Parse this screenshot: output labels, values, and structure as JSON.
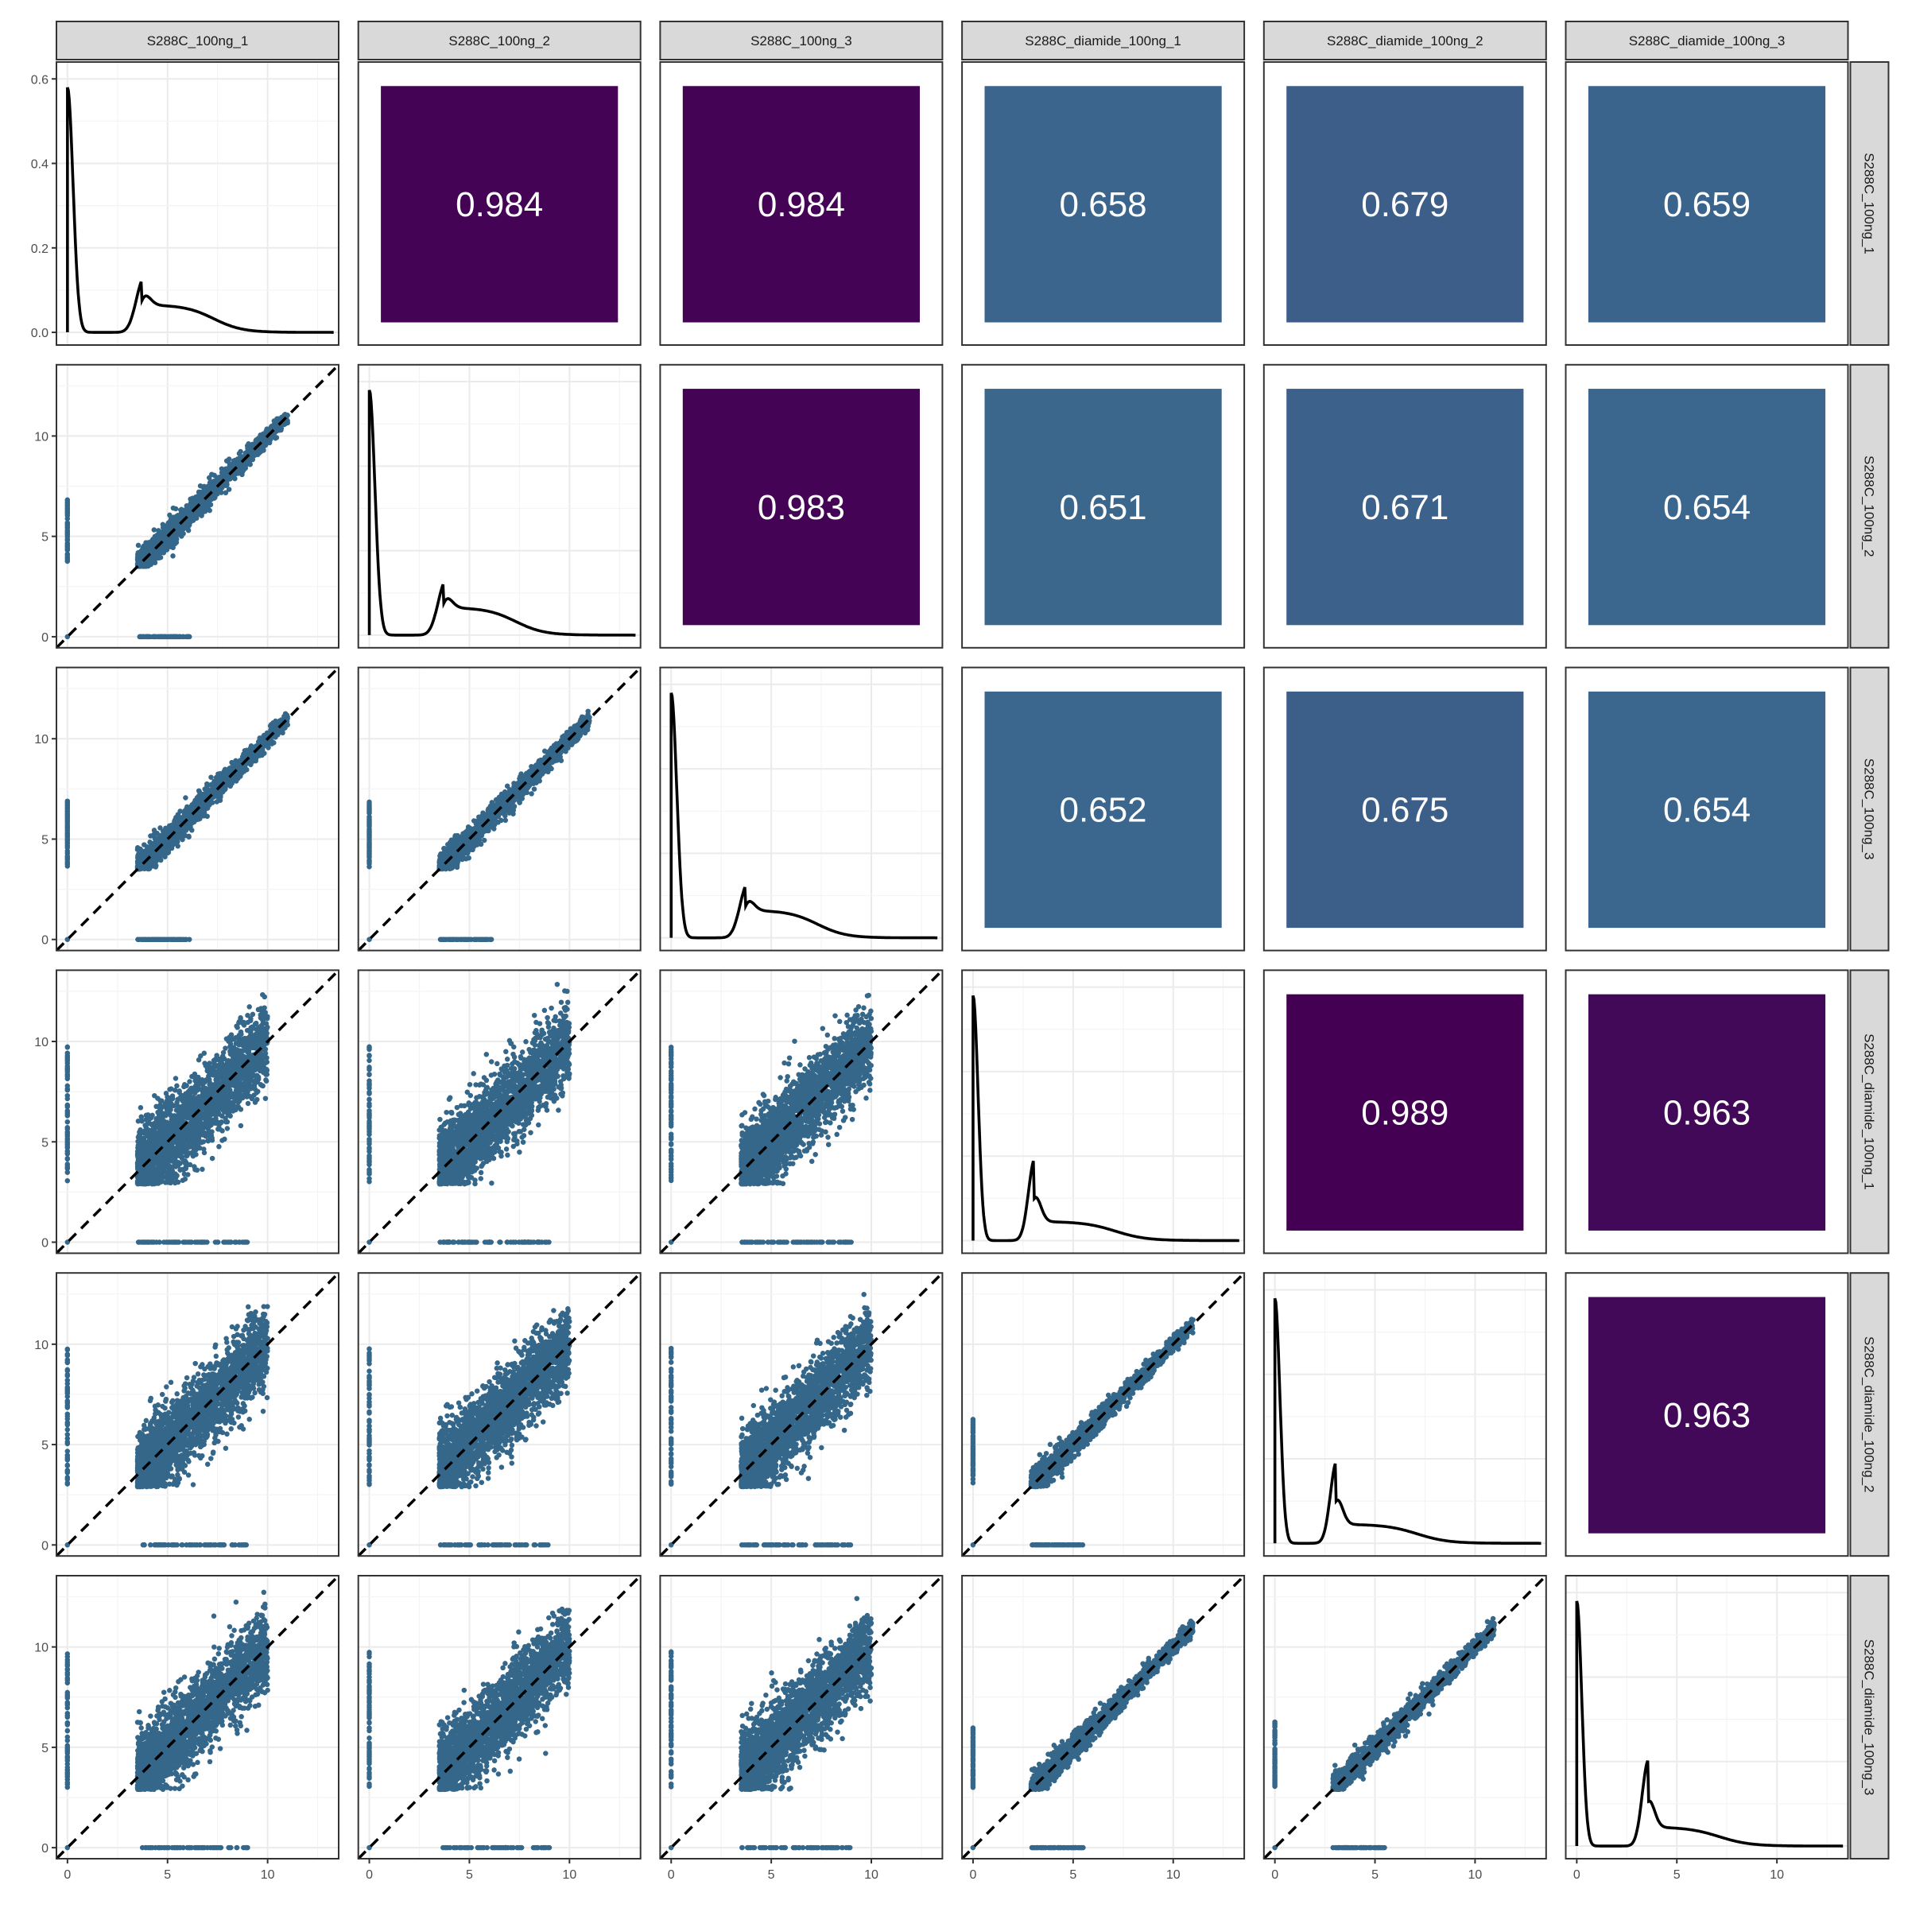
{
  "chart_data": {
    "type": "scatter-matrix",
    "variables": [
      "S288C_100ng_1",
      "S288C_100ng_2",
      "S288C_100ng_3",
      "S288C_diamide_100ng_1",
      "S288C_diamide_100ng_2",
      "S288C_diamide_100ng_3"
    ],
    "upper_panels": {
      "type": "correlation",
      "cells": [
        {
          "row": 0,
          "col": 1,
          "value": "0.984"
        },
        {
          "row": 0,
          "col": 2,
          "value": "0.984"
        },
        {
          "row": 0,
          "col": 3,
          "value": "0.658"
        },
        {
          "row": 0,
          "col": 4,
          "value": "0.679"
        },
        {
          "row": 0,
          "col": 5,
          "value": "0.659"
        },
        {
          "row": 1,
          "col": 2,
          "value": "0.983"
        },
        {
          "row": 1,
          "col": 3,
          "value": "0.651"
        },
        {
          "row": 1,
          "col": 4,
          "value": "0.671"
        },
        {
          "row": 1,
          "col": 5,
          "value": "0.654"
        },
        {
          "row": 2,
          "col": 3,
          "value": "0.652"
        },
        {
          "row": 2,
          "col": 4,
          "value": "0.675"
        },
        {
          "row": 2,
          "col": 5,
          "value": "0.654"
        },
        {
          "row": 3,
          "col": 4,
          "value": "0.989"
        },
        {
          "row": 3,
          "col": 5,
          "value": "0.963"
        },
        {
          "row": 4,
          "col": 5,
          "value": "0.963"
        }
      ],
      "color_high": "#440154",
      "color_low": "#3b6a8f"
    },
    "diagonal_panels": {
      "type": "density",
      "line_color": "#000000",
      "ylim": [
        0,
        0.6
      ],
      "y_ticks": [
        "0.0",
        "0.2",
        "0.4",
        "0.6"
      ]
    },
    "lower_panels": {
      "type": "scatter",
      "point_color": "#35678a",
      "reference_line": "y = x dashed",
      "xlim": [
        0,
        13
      ],
      "ylim": [
        0,
        13
      ],
      "x_ticks": [
        "0",
        "5",
        "10"
      ],
      "y_ticks": [
        "0",
        "5",
        "10"
      ]
    },
    "grid": true
  }
}
